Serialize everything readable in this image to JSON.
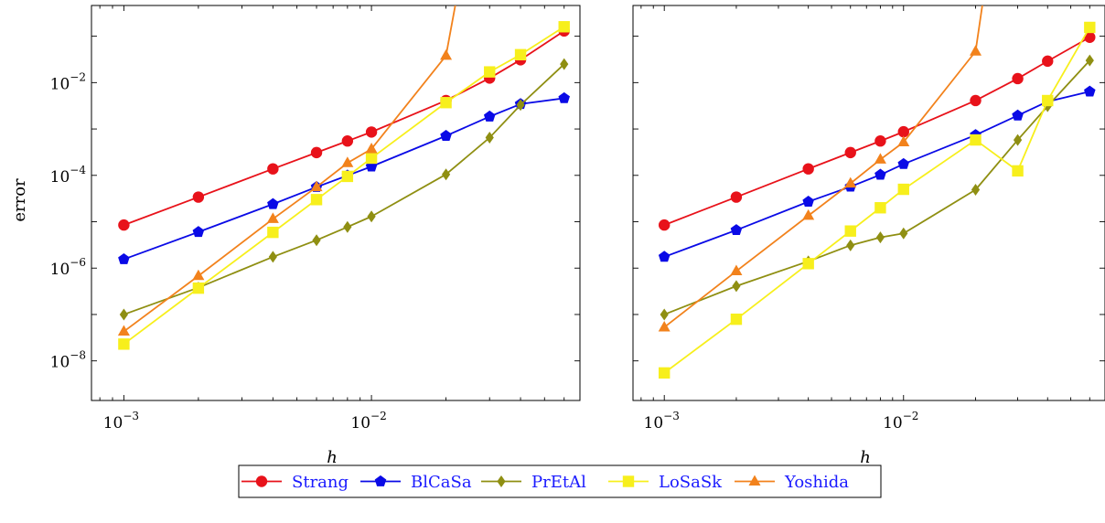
{
  "chart_data": [
    {
      "type": "line",
      "title": "",
      "xlabel": "h",
      "ylabel": "error",
      "xscale": "log",
      "yscale": "log",
      "xlim": [
        0.00074,
        0.0695
      ],
      "ylim": [
        1.4e-09,
        0.46
      ],
      "x_ticks": [
        {
          "base": "10",
          "exp": "−3",
          "value": 0.001
        },
        {
          "base": "10",
          "exp": "−2",
          "value": 0.01
        }
      ],
      "y_ticks": [
        {
          "base": "10",
          "exp": "−2",
          "value": 0.01
        },
        {
          "base": "10",
          "exp": "−4",
          "value": 0.0001
        },
        {
          "base": "10",
          "exp": "−6",
          "value": 1e-06
        },
        {
          "base": "10",
          "exp": "−8",
          "value": 1e-08
        }
      ],
      "series": [
        {
          "name": "Strang",
          "x": [
            0.001,
            0.002,
            0.004,
            0.006,
            0.008,
            0.01,
            0.02,
            0.03,
            0.04,
            0.06
          ],
          "y": [
            8.5e-06,
            3.4e-05,
            0.000138,
            0.00031,
            0.00055,
            0.00086,
            0.0041,
            0.0125,
            0.031,
            0.13
          ]
        },
        {
          "name": "BlCaSa",
          "x": [
            0.001,
            0.002,
            0.004,
            0.006,
            0.008,
            0.01,
            0.02,
            0.03,
            0.04,
            0.06
          ],
          "y": [
            1.55e-06,
            6e-06,
            2.4e-05,
            5.6e-05,
            9.9e-05,
            0.000155,
            0.00071,
            0.00185,
            0.00345,
            0.0046
          ]
        },
        {
          "name": "PrEtAl",
          "x": [
            0.001,
            0.002,
            0.004,
            0.006,
            0.008,
            0.01,
            0.02,
            0.03,
            0.04,
            0.06
          ],
          "y": [
            1e-07,
            3.8e-07,
            1.75e-06,
            4e-06,
            7.7e-06,
            1.3e-05,
            0.000105,
            0.00065,
            0.0033,
            0.025
          ]
        },
        {
          "name": "LoSaSk",
          "x": [
            0.001,
            0.002,
            0.004,
            0.006,
            0.008,
            0.01,
            0.02,
            0.03,
            0.04,
            0.06
          ],
          "y": [
            2.3e-08,
            3.7e-07,
            5.9e-06,
            3e-05,
            9.5e-05,
            0.000235,
            0.0037,
            0.017,
            0.04,
            0.16
          ]
        },
        {
          "name": "Yoshida",
          "x": [
            0.001,
            0.002,
            0.004,
            0.006,
            0.008,
            0.01,
            0.02,
            0.022
          ],
          "y": [
            4.3e-08,
            6.8e-07,
            1.15e-05,
            5.6e-05,
            0.000185,
            0.00037,
            0.038,
            0.6
          ]
        }
      ]
    },
    {
      "type": "line",
      "title": "",
      "xlabel": "h",
      "ylabel": "",
      "xscale": "log",
      "yscale": "log",
      "xlim": [
        0.00074,
        0.0695
      ],
      "ylim": [
        1.4e-09,
        0.46
      ],
      "x_ticks": [
        {
          "base": "10",
          "exp": "−3",
          "value": 0.001
        },
        {
          "base": "10",
          "exp": "−2",
          "value": 0.01
        }
      ],
      "y_ticks": [],
      "series": [
        {
          "name": "Strang",
          "x": [
            0.001,
            0.002,
            0.004,
            0.006,
            0.008,
            0.01,
            0.02,
            0.03,
            0.04,
            0.06
          ],
          "y": [
            8.5e-06,
            3.4e-05,
            0.000138,
            0.00031,
            0.00055,
            0.00087,
            0.0041,
            0.0122,
            0.029,
            0.095
          ]
        },
        {
          "name": "BlCaSa",
          "x": [
            0.001,
            0.002,
            0.004,
            0.006,
            0.008,
            0.01,
            0.02,
            0.03,
            0.04,
            0.06
          ],
          "y": [
            1.75e-06,
            6.6e-06,
            2.7e-05,
            5.7e-05,
            0.000103,
            0.000175,
            0.00074,
            0.00195,
            0.0039,
            0.0064
          ]
        },
        {
          "name": "PrEtAl",
          "x": [
            0.001,
            0.002,
            0.004,
            0.006,
            0.008,
            0.01,
            0.02,
            0.03,
            0.04,
            0.06
          ],
          "y": [
            1e-07,
            4.1e-07,
            1.4e-06,
            3.1e-06,
            4.6e-06,
            5.6e-06,
            4.9e-05,
            0.00058,
            0.0031,
            0.03
          ]
        },
        {
          "name": "LoSaSk",
          "x": [
            0.001,
            0.002,
            0.004,
            0.006,
            0.008,
            0.01,
            0.02,
            0.03,
            0.04,
            0.06
          ],
          "y": [
            5.5e-09,
            7.9e-08,
            1.25e-06,
            6.3e-06,
            2e-05,
            5e-05,
            0.00058,
            0.000125,
            0.0041,
            0.155
          ]
        },
        {
          "name": "Yoshida",
          "x": [
            0.001,
            0.002,
            0.004,
            0.006,
            0.008,
            0.01,
            0.02,
            0.0215
          ],
          "y": [
            5.3e-08,
            8.6e-07,
            1.35e-05,
            6.7e-05,
            0.00022,
            0.00052,
            0.047,
            0.6
          ]
        }
      ]
    }
  ],
  "legend": {
    "position": "bottom-center",
    "entries": [
      {
        "name": "Strang",
        "color": "#e8121a",
        "marker": "circle"
      },
      {
        "name": "BlCaSa",
        "color": "#0a0ae6",
        "marker": "pentagon"
      },
      {
        "name": "PrEtAl",
        "color": "#8f8f12",
        "marker": "diamond"
      },
      {
        "name": "LoSaSk",
        "color": "#f7ef1c",
        "marker": "square"
      },
      {
        "name": "Yoshida",
        "color": "#f2821c",
        "marker": "triangle"
      }
    ]
  }
}
